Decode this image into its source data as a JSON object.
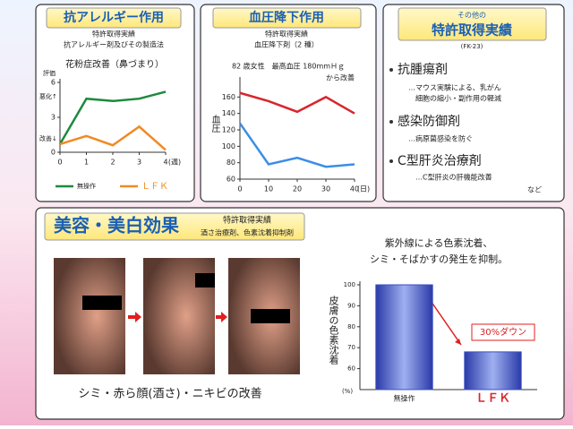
{
  "panels": [
    {
      "title": "抗アレルギー作用",
      "patent": "特許取得実績",
      "patent_name": "抗アレルギー剤及びその製造法"
    },
    {
      "title": "血圧降下作用",
      "patent": "特許取得実績",
      "patent_name": "血圧降下剤（2 種）"
    },
    {
      "pre_title": "その他の",
      "title": "特許取得実績",
      "code": "(FK-23)",
      "items": [
        {
          "name": "抗腫瘍剤",
          "notes": [
            "…マウス実験による、乳がん",
            "細胞の縮小・副作用の軽減"
          ]
        },
        {
          "name": "感染防御剤",
          "notes": [
            "…病原菌感染を防ぐ"
          ]
        },
        {
          "name": "C型肝炎治療剤",
          "notes": [
            "…C型肝炎の肝機能改善"
          ]
        }
      ],
      "footer": "など"
    },
    {
      "title": "美容・美白効果",
      "patent": "特許取得実績",
      "patent_name": "酒さ治療剤、色素沈着抑制剤",
      "caption": "シミ・赤ら顔(酒さ)・ニキビの改善",
      "claim": [
        "紫外線による色素沈着、",
        "シミ・そばかすの発生を抑制。"
      ]
    }
  ],
  "chart_data": [
    {
      "type": "line",
      "title": "花粉症改善（鼻づまり）",
      "y_label": "評価",
      "annotations": [
        "悪化↑",
        "改善↓"
      ],
      "x_label": "(週)",
      "x": [
        0,
        1,
        2,
        3,
        4
      ],
      "xlim": [
        0,
        4
      ],
      "xticks": [
        0,
        1,
        2,
        3,
        4
      ],
      "ylim": [
        0,
        6
      ],
      "yticks": [
        0,
        3,
        6
      ],
      "series": [
        {
          "name": "無操作",
          "color": "#1e8a3c",
          "values": [
            0.7,
            4.6,
            4.4,
            4.6,
            5.2
          ]
        },
        {
          "name": "ＬＦＫ",
          "color": "#f08a24",
          "values": [
            0.7,
            1.4,
            0.6,
            2.2,
            0.2
          ]
        }
      ]
    },
    {
      "type": "line",
      "title": "82 歳女性　最高血圧 180mmＨｇ",
      "subtitle": "から改善",
      "y_label": "血圧",
      "x_label": "(日)",
      "x": [
        0,
        10,
        20,
        30,
        40
      ],
      "xlim": [
        0,
        40
      ],
      "xticks": [
        0,
        10,
        20,
        30,
        40
      ],
      "ylim": [
        60,
        180
      ],
      "yticks": [
        60,
        80,
        100,
        120,
        140,
        160
      ],
      "series": [
        {
          "color": "#d8262e",
          "values": [
            165,
            155,
            142,
            160,
            140
          ]
        },
        {
          "color": "#3a8ee6",
          "values": [
            128,
            78,
            86,
            75,
            78
          ]
        }
      ]
    },
    {
      "type": "bar",
      "y_label": "皮膚の色素沈着",
      "y_unit": "(%)",
      "annotation": "30%ダウン",
      "categories": [
        "無操作",
        "ＬＦＫ"
      ],
      "category_colors": [
        "#222222",
        "#d8262e"
      ],
      "values": [
        100,
        68
      ],
      "color": "#3b4fc4",
      "ylim": [
        50,
        100
      ],
      "yticks": [
        60,
        70,
        80,
        90,
        100
      ]
    }
  ]
}
